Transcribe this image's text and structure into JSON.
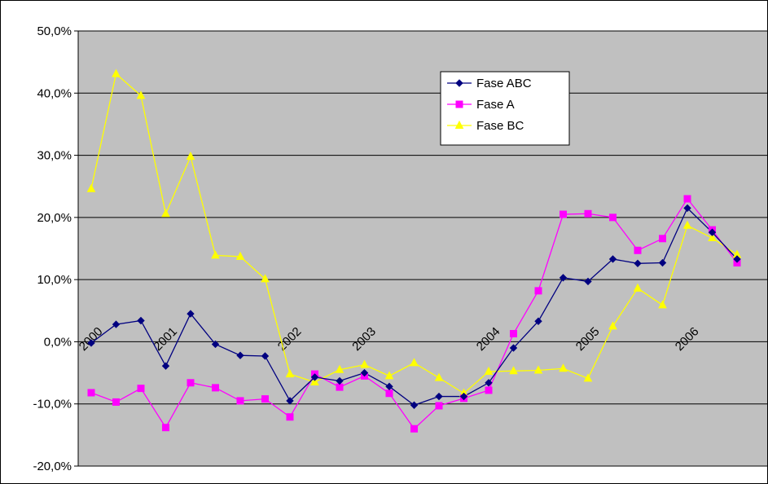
{
  "chart_data": {
    "type": "line",
    "title": "",
    "xlabel": "",
    "ylabel": "",
    "ylim": [
      -0.2,
      0.5
    ],
    "y_ticks": [
      0.5,
      0.4,
      0.3,
      0.2,
      0.1,
      0.0,
      -0.1,
      -0.2
    ],
    "y_tick_labels": [
      "50,0%",
      "40,0%",
      "30,0%",
      "20,0%",
      "10,0%",
      "0,0%",
      "-10,0%",
      "-20,0%"
    ],
    "grid": true,
    "plot_background": "#c0c0c0",
    "x_tick_labels": [
      "2000",
      "2001",
      "2002",
      "2003",
      "2004",
      "2005",
      "2006"
    ],
    "x_tick_positions": [
      0,
      3,
      8,
      11,
      16,
      20,
      24
    ],
    "legend_position": "top-center",
    "x": [
      0,
      1,
      2,
      3,
      4,
      5,
      6,
      7,
      8,
      9,
      10,
      11,
      12,
      13,
      14,
      15,
      16,
      17,
      18,
      19,
      20,
      21,
      22,
      23,
      24,
      25,
      26
    ],
    "series": [
      {
        "name": "Fase ABC",
        "color": "#000080",
        "marker": "diamond",
        "values": [
          -0.002,
          0.028,
          0.034,
          -0.039,
          0.045,
          -0.004,
          -0.022,
          -0.023,
          -0.095,
          -0.057,
          -0.063,
          -0.05,
          -0.072,
          -0.102,
          -0.088,
          -0.088,
          -0.066,
          -0.01,
          0.033,
          0.103,
          0.097,
          0.133,
          0.126,
          0.127,
          0.215,
          0.176,
          0.133
        ]
      },
      {
        "name": "Fase A",
        "color": "#ff00ff",
        "marker": "square",
        "values": [
          -0.082,
          -0.097,
          -0.075,
          -0.138,
          -0.066,
          -0.074,
          -0.095,
          -0.092,
          -0.121,
          -0.052,
          -0.073,
          -0.055,
          -0.083,
          -0.14,
          -0.103,
          -0.091,
          -0.078,
          0.013,
          0.082,
          0.205,
          0.206,
          0.2,
          0.147,
          0.166,
          0.23,
          0.18,
          0.127
        ]
      },
      {
        "name": "Fase BC",
        "color": "#ffff00",
        "marker": "triangle",
        "values": [
          0.246,
          0.431,
          0.396,
          0.206,
          0.298,
          0.139,
          0.137,
          0.101,
          -0.052,
          -0.065,
          -0.045,
          -0.037,
          -0.055,
          -0.034,
          -0.058,
          -0.083,
          -0.048,
          -0.047,
          -0.046,
          -0.043,
          -0.059,
          0.025,
          0.086,
          0.059,
          0.187,
          0.167,
          0.14
        ]
      }
    ]
  }
}
